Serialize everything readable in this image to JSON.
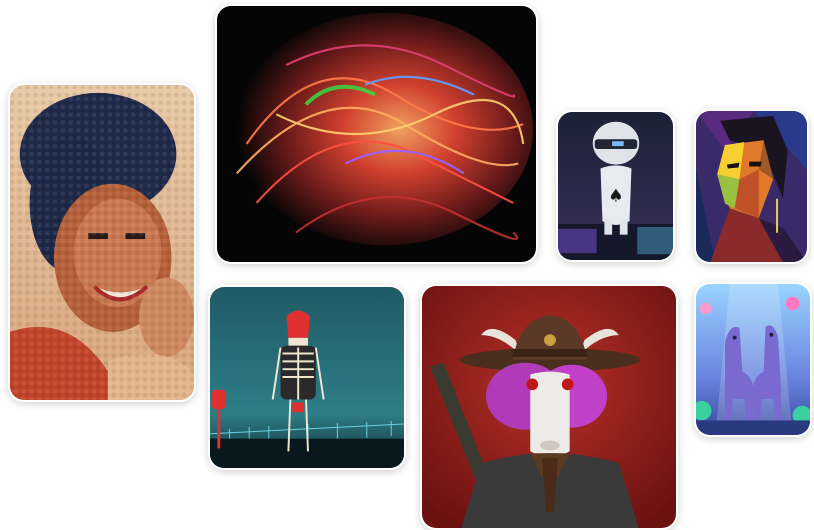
{
  "gallery": {
    "tiles": [
      {
        "id": "mosaic-portrait"
      },
      {
        "id": "psychedelic-swirl"
      },
      {
        "id": "robot-figure"
      },
      {
        "id": "polygon-portrait"
      },
      {
        "id": "skeleton-figure"
      },
      {
        "id": "goat-ranger"
      },
      {
        "id": "llama-scene"
      }
    ]
  }
}
